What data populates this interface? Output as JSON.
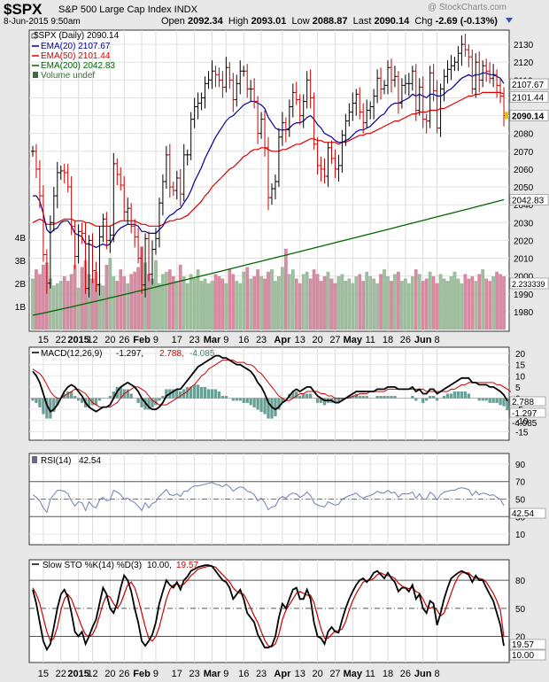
{
  "header": {
    "symbol": "$SPX",
    "full_name": "S&P 500 Large Cap Index  INDX",
    "watermark": "@ StockCharts.com",
    "datetime": "8-Jun-2015 9:50am",
    "quote": {
      "open_label": "Open",
      "open": "2092.34",
      "high_label": "High",
      "high": "2093.01",
      "low_label": "Low",
      "low": "2088.87",
      "last_label": "Last",
      "last": "2090.14",
      "chg_label": "Chg",
      "chg": "-2.69 (-0.13%)"
    }
  },
  "colors": {
    "up_bar": "#000000",
    "down_bar": "#cc0000",
    "ema20": "#000099",
    "ema50": "#dd0000",
    "ema200": "#006600",
    "vol_up": "#9fbf9f",
    "vol_down": "#d98ba2",
    "macd_line": "#000000",
    "macd_signal": "#cc0000",
    "macd_hist": "#6a9f95",
    "rsi_line": "#6f7faf",
    "sto_k": "#000000",
    "sto_d": "#cc0000"
  },
  "price_legend": {
    "title": "$SPX (Daily) 2090.14",
    "ema20": "EMA(20) 2107.67",
    "ema50": "EMA(50) 2101.44",
    "ema200": "EMA(200) 2042.83",
    "volume": "Volume undef"
  },
  "macd_legend": {
    "name": "MACD(12,26,9)",
    "v1": "-1.297",
    "v2": "2.788",
    "v3": "-4.085"
  },
  "rsi_legend": {
    "name": "RSI(14)",
    "value": "42.54"
  },
  "sto_legend": {
    "name": "Slow STO %K(14) %D(3)",
    "k": "10.00",
    "d": "19.57"
  },
  "chart_data": [
    {
      "type": "ohlc",
      "panel": "price",
      "title": "$SPX (Daily) 2090.14",
      "x_tick_labels": [
        "15",
        "22",
        "2015",
        "12",
        "20",
        "26",
        "Feb",
        "9",
        "17",
        "23",
        "Mar",
        "9",
        "16",
        "23",
        "Apr",
        "13",
        "20",
        "27",
        "May",
        "11",
        "18",
        "26",
        "Jun",
        "8"
      ],
      "price_axis": [
        1980,
        1990,
        2000,
        2010,
        2020,
        2030,
        2040,
        2050,
        2060,
        2070,
        2080,
        2090,
        2100,
        2110,
        2120,
        2130
      ],
      "price_tick_labels": [
        "1980",
        "1990",
        "2000",
        "2010",
        "2020",
        "2030",
        "2040",
        "2050",
        "2060",
        "2070",
        "2080",
        "2090",
        "2100",
        "2110",
        "2120",
        "2130"
      ],
      "ylim": [
        1970,
        2137
      ],
      "volume_axis_labels": [
        "1B",
        "2B",
        "3B",
        "4B"
      ],
      "volume_labels": [
        "1B",
        "2B",
        "3B",
        "4B"
      ],
      "price_marker_labels": [
        "2107.67",
        "2101.44",
        "2090.14",
        "2042.83",
        "2.233339"
      ],
      "close": [
        2070,
        2060,
        2045,
        2012,
        1996,
        2030,
        2045,
        2058,
        2059,
        2058,
        2050,
        2028,
        2011,
        2025,
        2024,
        1993,
        2020,
        2003,
        1995,
        2022,
        2032,
        2020,
        2023,
        2063,
        2057,
        2051,
        2036,
        2038,
        2028,
        2022,
        2010,
        1995,
        2021,
        2001,
        2015,
        2021,
        2041,
        2053,
        2068,
        2050,
        2048,
        2055,
        2046,
        2068,
        2068,
        2088,
        2095,
        2097,
        2100,
        2108,
        2110,
        2115,
        2113,
        2110,
        2106,
        2117,
        2110,
        2099,
        2108,
        2115,
        2115,
        2105,
        2105,
        2098,
        2080,
        2088,
        2072,
        2044,
        2049,
        2053,
        2078,
        2086,
        2082,
        2095,
        2103,
        2099,
        2090,
        2098,
        2110,
        2100,
        2074,
        2062,
        2060,
        2056,
        2072,
        2066,
        2060,
        2062,
        2079,
        2087,
        2092,
        2097,
        2102,
        2092,
        2086,
        2093,
        2095,
        2101,
        2111,
        2105,
        2107,
        2117,
        2110,
        2112,
        2097,
        2107,
        2108,
        2108,
        2115,
        2093,
        2106,
        2088,
        2087,
        2114,
        2104,
        2083,
        2105,
        2112,
        2116,
        2118,
        2120,
        2125,
        2130,
        2127,
        2123,
        2105,
        2120,
        2110,
        2118,
        2115,
        2111,
        2113,
        2107,
        2101,
        2090
      ],
      "ema20": [
        2045,
        2045,
        2042,
        2035,
        2026,
        2024,
        2026,
        2027,
        2030,
        2031,
        2031,
        2028,
        2024,
        2023,
        2022,
        2018,
        2018,
        2017,
        2016,
        2017,
        2018,
        2017,
        2018,
        2022,
        2025,
        2027,
        2028,
        2029,
        2029,
        2029,
        2028,
        2025,
        2025,
        2024,
        2024,
        2024,
        2026,
        2028,
        2032,
        2034,
        2035,
        2037,
        2038,
        2041,
        2044,
        2048,
        2053,
        2057,
        2061,
        2066,
        2070,
        2074,
        2078,
        2081,
        2084,
        2087,
        2089,
        2090,
        2092,
        2094,
        2096,
        2097,
        2098,
        2098,
        2097,
        2096,
        2094,
        2089,
        2086,
        2083,
        2082,
        2082,
        2082,
        2083,
        2085,
        2086,
        2086,
        2087,
        2089,
        2090,
        2088,
        2085,
        2083,
        2080,
        2079,
        2078,
        2076,
        2075,
        2075,
        2076,
        2077,
        2079,
        2081,
        2082,
        2082,
        2083,
        2084,
        2086,
        2088,
        2090,
        2091,
        2094,
        2096,
        2097,
        2097,
        2098,
        2099,
        2100,
        2102,
        2101,
        2102,
        2101,
        2100,
        2102,
        2102,
        2101,
        2101,
        2102,
        2104,
        2105,
        2107,
        2109,
        2111,
        2112,
        2113,
        2112,
        2113,
        2113,
        2114,
        2114,
        2113,
        2113,
        2112,
        2111,
        2108
      ],
      "ema50": [
        2030,
        2031,
        2032,
        2031,
        2029,
        2029,
        2029,
        2030,
        2031,
        2032,
        2032,
        2032,
        2031,
        2031,
        2031,
        2030,
        2030,
        2029,
        2028,
        2028,
        2028,
        2028,
        2028,
        2029,
        2030,
        2031,
        2031,
        2031,
        2031,
        2031,
        2030,
        2029,
        2029,
        2028,
        2028,
        2028,
        2028,
        2029,
        2030,
        2031,
        2031,
        2032,
        2032,
        2033,
        2034,
        2036,
        2038,
        2040,
        2042,
        2045,
        2047,
        2050,
        2052,
        2054,
        2056,
        2058,
        2060,
        2061,
        2063,
        2065,
        2067,
        2068,
        2070,
        2071,
        2071,
        2072,
        2072,
        2071,
        2070,
        2070,
        2070,
        2071,
        2071,
        2072,
        2073,
        2074,
        2074,
        2075,
        2076,
        2077,
        2077,
        2076,
        2076,
        2075,
        2075,
        2075,
        2075,
        2074,
        2075,
        2075,
        2076,
        2077,
        2078,
        2079,
        2079,
        2080,
        2080,
        2081,
        2082,
        2083,
        2084,
        2085,
        2086,
        2087,
        2087,
        2088,
        2089,
        2090,
        2091,
        2091,
        2092,
        2092,
        2092,
        2093,
        2093,
        2093,
        2094,
        2094,
        2095,
        2096,
        2097,
        2098,
        2099,
        2100,
        2101,
        2101,
        2102,
        2102,
        2103,
        2103,
        2103,
        2103,
        2103,
        2103,
        2102
      ],
      "ema200_start": 1978,
      "ema200_end": 2042.83,
      "volume_billions": [
        2.2,
        2.6,
        2.4,
        2.8,
        2.9,
        2.2,
        1.9,
        2.0,
        2.1,
        2.3,
        2.1,
        2.4,
        2.8,
        1.8,
        2.7,
        3.0,
        2.4,
        2.2,
        2.5,
        2.0,
        1.9,
        2.8,
        3.1,
        2.3,
        2.1,
        2.6,
        2.3,
        2.0,
        2.4,
        2.5,
        2.7,
        3.6,
        2.9,
        2.4,
        2.2,
        3.0,
        2.0,
        2.4,
        2.5,
        2.6,
        2.3,
        2.1,
        2.8,
        2.3,
        2.0,
        2.4,
        2.2,
        2.6,
        2.1,
        2.2,
        2.0,
        2.1,
        2.4,
        2.3,
        2.2,
        2.0,
        2.6,
        2.4,
        2.1,
        2.0,
        2.5,
        2.7,
        2.2,
        2.3,
        2.6,
        2.3,
        2.2,
        2.5,
        2.6,
        2.1,
        2.3,
        2.7,
        3.5,
        2.4,
        2.6,
        2.2,
        2.0,
        2.4,
        2.5,
        2.2,
        2.6,
        2.4,
        2.1,
        2.3,
        2.5,
        2.2,
        2.0,
        2.3,
        2.4,
        2.1,
        2.2,
        2.0,
        2.3,
        2.4,
        2.1,
        2.5,
        2.3,
        2.2,
        2.0,
        2.4,
        2.6,
        2.3,
        2.1,
        2.4,
        2.5,
        2.1,
        2.2,
        2.0,
        2.3,
        2.6,
        2.4,
        2.1,
        2.2,
        2.5,
        2.3,
        2.0,
        2.4,
        2.2,
        2.1,
        2.3,
        2.5,
        2.2,
        2.0,
        2.4,
        2.2,
        2.3,
        2.1,
        2.4,
        2.6,
        2.2,
        2.1,
        2.3,
        2.5,
        2.4,
        2.3
      ]
    },
    {
      "type": "line",
      "panel": "macd",
      "title": "MACD(12,26,9)",
      "y_tick_labels": [
        "20",
        "15",
        "10",
        "5",
        "0",
        "-5",
        "-10",
        "-15"
      ],
      "ylim": [
        -18,
        22
      ],
      "macd": [
        12,
        10,
        7,
        2,
        -3,
        -6,
        -5,
        -3,
        0,
        3,
        5,
        6,
        5,
        3,
        1,
        -2,
        -4,
        -5,
        -6,
        -5,
        -4,
        -4,
        -3,
        0,
        3,
        5,
        6,
        7,
        6,
        5,
        3,
        0,
        -2,
        -4,
        -5,
        -5,
        -4,
        -2,
        1,
        2,
        3,
        4,
        4,
        6,
        8,
        10,
        12,
        14,
        15,
        16,
        17,
        18,
        19,
        19,
        18,
        18,
        17,
        16,
        15,
        15,
        14,
        13,
        12,
        10,
        7,
        5,
        2,
        -2,
        -4,
        -5,
        -4,
        -2,
        -1,
        1,
        3,
        4,
        3,
        4,
        5,
        5,
        3,
        1,
        0,
        -1,
        -1,
        -1,
        -2,
        -2,
        -1,
        0,
        1,
        2,
        3,
        3,
        3,
        3,
        3,
        3,
        4,
        4,
        4,
        5,
        5,
        5,
        4,
        4,
        4,
        4,
        5,
        3,
        4,
        2,
        2,
        4,
        4,
        2,
        3,
        4,
        5,
        6,
        7,
        8,
        9,
        9,
        9,
        7,
        7,
        6,
        6,
        6,
        5,
        5,
        4,
        3,
        1.5,
        -1.297
      ],
      "signal": [
        13,
        12,
        11,
        9,
        6,
        3,
        1,
        0,
        0,
        1,
        2,
        3,
        4,
        4,
        3,
        2,
        0,
        -2,
        -3,
        -4,
        -4,
        -4,
        -4,
        -3,
        -2,
        0,
        2,
        3,
        4,
        5,
        5,
        4,
        3,
        1,
        -1,
        -2,
        -3,
        -3,
        -3,
        -2,
        -1,
        0,
        1,
        2,
        3,
        5,
        6,
        8,
        10,
        11,
        13,
        14,
        15,
        16,
        17,
        17,
        17,
        17,
        16,
        16,
        16,
        15,
        15,
        14,
        12,
        11,
        9,
        7,
        5,
        3,
        1,
        0,
        -1,
        -1,
        0,
        1,
        2,
        2,
        3,
        3,
        3,
        3,
        2,
        2,
        1,
        1,
        0,
        0,
        0,
        0,
        0,
        1,
        1,
        2,
        2,
        2,
        3,
        3,
        3,
        3,
        3,
        4,
        4,
        4,
        4,
        4,
        4,
        4,
        4,
        4,
        4,
        4,
        3,
        3,
        3,
        3,
        3,
        3,
        3,
        4,
        4,
        5,
        6,
        6,
        7,
        7,
        7,
        7,
        7,
        7,
        7,
        7,
        6,
        6,
        5,
        4,
        2.788
      ]
    },
    {
      "type": "line",
      "panel": "rsi",
      "title": "RSI(14)",
      "y_tick_labels": [
        "90",
        "70",
        "50",
        "30",
        "10"
      ],
      "ylim": [
        0,
        100
      ],
      "rsi": [
        55,
        52,
        48,
        40,
        35,
        50,
        55,
        60,
        60,
        59,
        56,
        48,
        42,
        47,
        46,
        37,
        47,
        42,
        40,
        49,
        52,
        48,
        49,
        60,
        58,
        55,
        50,
        51,
        48,
        46,
        42,
        37,
        46,
        40,
        45,
        47,
        53,
        57,
        61,
        55,
        54,
        56,
        53,
        59,
        59,
        63,
        65,
        65,
        66,
        67,
        68,
        69,
        67,
        66,
        64,
        67,
        64,
        59,
        62,
        64,
        63,
        59,
        58,
        55,
        48,
        51,
        46,
        38,
        41,
        42,
        50,
        53,
        51,
        55,
        57,
        56,
        52,
        54,
        58,
        54,
        46,
        43,
        42,
        41,
        47,
        45,
        43,
        44,
        50,
        52,
        54,
        55,
        57,
        53,
        51,
        53,
        54,
        56,
        59,
        57,
        57,
        60,
        57,
        58,
        52,
        56,
        56,
        56,
        58,
        51,
        56,
        50,
        50,
        58,
        55,
        49,
        55,
        58,
        59,
        60,
        60,
        62,
        63,
        62,
        61,
        54,
        59,
        55,
        57,
        56,
        54,
        55,
        52,
        50,
        42.54
      ]
    },
    {
      "type": "line",
      "panel": "stochastic",
      "title": "Slow STO %K(14) %D(3)",
      "y_tick_labels": [
        "80",
        "50",
        "20"
      ],
      "ylim": [
        0,
        100
      ],
      "k": [
        70,
        55,
        35,
        15,
        6,
        12,
        30,
        50,
        65,
        70,
        62,
        45,
        25,
        20,
        25,
        12,
        20,
        30,
        38,
        55,
        72,
        65,
        50,
        45,
        55,
        72,
        85,
        80,
        68,
        50,
        35,
        15,
        10,
        15,
        22,
        35,
        55,
        68,
        80,
        75,
        72,
        78,
        70,
        80,
        84,
        90,
        92,
        94,
        95,
        96,
        96,
        95,
        90,
        85,
        80,
        78,
        72,
        60,
        65,
        70,
        60,
        45,
        40,
        35,
        22,
        15,
        8,
        8,
        10,
        20,
        40,
        55,
        50,
        60,
        70,
        72,
        60,
        60,
        70,
        60,
        35,
        20,
        18,
        12,
        25,
        30,
        25,
        24,
        38,
        50,
        60,
        68,
        75,
        80,
        82,
        78,
        82,
        88,
        90,
        86,
        82,
        88,
        82,
        78,
        68,
        72,
        72,
        68,
        75,
        60,
        65,
        50,
        45,
        58,
        55,
        32,
        45,
        60,
        72,
        82,
        85,
        88,
        90,
        88,
        86,
        78,
        85,
        80,
        80,
        72,
        65,
        58,
        45,
        32,
        10.0
      ],
      "d": [
        72,
        65,
        55,
        40,
        25,
        15,
        18,
        30,
        48,
        60,
        65,
        60,
        50,
        40,
        30,
        22,
        20,
        22,
        30,
        42,
        55,
        64,
        62,
        55,
        50,
        55,
        65,
        75,
        78,
        72,
        60,
        45,
        30,
        18,
        15,
        20,
        30,
        45,
        60,
        70,
        75,
        76,
        74,
        76,
        80,
        85,
        88,
        92,
        93,
        94,
        95,
        95,
        94,
        90,
        86,
        82,
        78,
        72,
        68,
        66,
        65,
        58,
        50,
        42,
        35,
        25,
        16,
        10,
        9,
        12,
        22,
        38,
        48,
        54,
        60,
        66,
        68,
        66,
        64,
        64,
        56,
        42,
        28,
        18,
        18,
        22,
        26,
        26,
        28,
        36,
        48,
        58,
        66,
        72,
        78,
        80,
        80,
        82,
        86,
        88,
        86,
        85,
        84,
        82,
        77,
        74,
        72,
        71,
        72,
        68,
        66,
        60,
        52,
        50,
        52,
        48,
        42,
        45,
        55,
        66,
        76,
        84,
        88,
        88,
        88,
        84,
        82,
        82,
        81,
        78,
        72,
        66,
        58,
        48,
        19.57
      ]
    }
  ]
}
